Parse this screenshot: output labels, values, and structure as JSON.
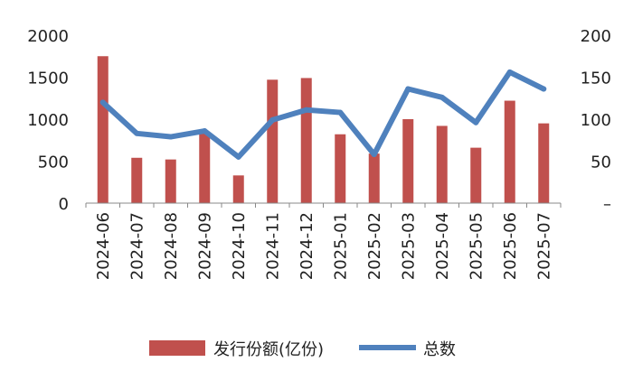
{
  "chart_data": {
    "type": "bar",
    "categories": [
      "2024-06",
      "2024-07",
      "2024-08",
      "2024-09",
      "2024-10",
      "2024-11",
      "2024-12",
      "2025-01",
      "2025-02",
      "2025-03",
      "2025-04",
      "2025-05",
      "2025-06",
      "2025-07"
    ],
    "series": [
      {
        "name": "发行份额(亿份)",
        "type": "bar",
        "axis": "left",
        "color": "#c0504d",
        "values": [
          1750,
          540,
          520,
          840,
          330,
          1470,
          1490,
          820,
          590,
          1000,
          920,
          660,
          1220,
          950
        ]
      },
      {
        "name": "总数",
        "type": "line",
        "axis": "right",
        "color": "#4f81bd",
        "values": [
          120,
          83,
          79,
          86,
          55,
          99,
          111,
          108,
          58,
          136,
          126,
          96,
          156,
          136
        ]
      }
    ],
    "y_left": {
      "range": [
        0,
        2000
      ],
      "ticks": [
        "0",
        "500",
        "1000",
        "1500",
        "2000"
      ]
    },
    "y_right": {
      "range": [
        0,
        200
      ],
      "ticks": [
        "–",
        "50",
        "100",
        "150",
        "200"
      ]
    },
    "grid": false,
    "legend": "bottom"
  }
}
